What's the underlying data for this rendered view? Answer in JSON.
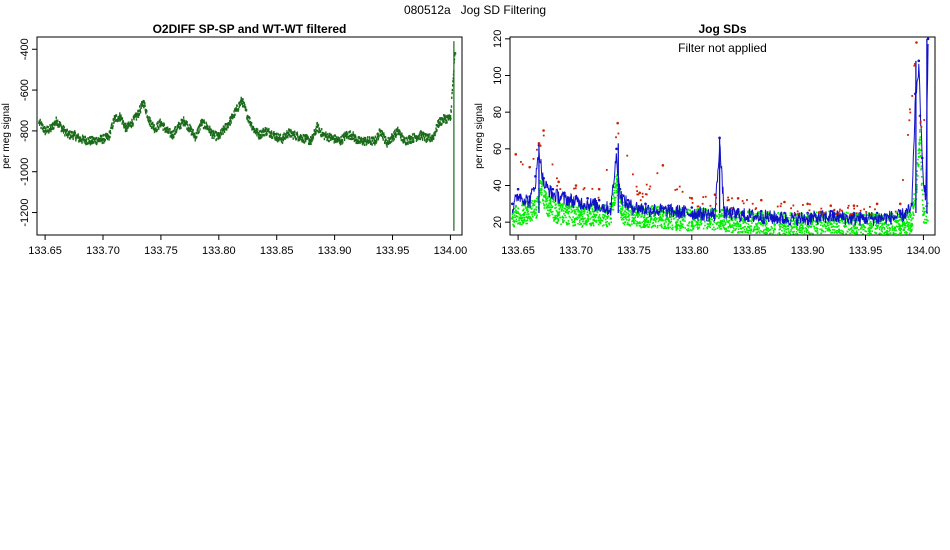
{
  "figure": {
    "title": "080512a   Jog SD Filtering"
  },
  "colors": {
    "dark_green": "#1a6b1a",
    "bright_green": "#00ee00",
    "blue": "#1010c8",
    "red": "#cc2200",
    "frame": "#000000"
  },
  "chart_data": [
    {
      "type": "scatter",
      "title": "O2DIFF SP-SP and WT-WT filtered",
      "xlabel": "",
      "ylabel": "per meg signal",
      "xlim": [
        133.643,
        134.01
      ],
      "ylim": [
        -1310,
        -340
      ],
      "x_ticks": [
        133.65,
        133.7,
        133.75,
        133.8,
        133.85,
        133.9,
        133.95,
        134.0
      ],
      "x_tick_labels": [
        "133.65",
        "133.70",
        "133.75",
        "133.80",
        "133.85",
        "133.90",
        "133.95",
        "134.00"
      ],
      "y_ticks": [
        -400,
        -600,
        -800,
        -1000,
        -1200
      ],
      "y_tick_labels": [
        "-400",
        "-600",
        "-800",
        "-1000",
        "-1200"
      ],
      "series": [
        {
          "color": "#1a6b1a",
          "x": [
            133.645,
            133.65,
            133.655,
            133.66,
            133.665,
            133.67,
            133.675,
            133.68,
            133.69,
            133.7,
            133.705,
            133.71,
            133.715,
            133.72,
            133.725,
            133.73,
            133.735,
            133.74,
            133.745,
            133.75,
            133.755,
            133.76,
            133.765,
            133.77,
            133.775,
            133.78,
            133.785,
            133.79,
            133.795,
            133.8,
            133.805,
            133.81,
            133.815,
            133.82,
            133.825,
            133.83,
            133.835,
            133.84,
            133.845,
            133.85,
            133.855,
            133.86,
            133.865,
            133.87,
            133.875,
            133.88,
            133.885,
            133.89,
            133.895,
            133.9,
            133.905,
            133.91,
            133.915,
            133.92,
            133.925,
            133.93,
            133.935,
            133.94,
            133.945,
            133.95,
            133.955,
            133.96,
            133.965,
            133.97,
            133.975,
            133.98,
            133.985,
            133.99,
            133.995,
            134.0,
            134.004
          ],
          "y": [
            -760,
            -800,
            -790,
            -750,
            -790,
            -820,
            -820,
            -840,
            -850,
            -840,
            -830,
            -740,
            -730,
            -790,
            -760,
            -720,
            -660,
            -750,
            -790,
            -760,
            -800,
            -820,
            -780,
            -750,
            -790,
            -830,
            -760,
            -780,
            -820,
            -830,
            -790,
            -750,
            -700,
            -650,
            -730,
            -790,
            -820,
            -800,
            -810,
            -830,
            -840,
            -810,
            -820,
            -830,
            -840,
            -850,
            -780,
            -820,
            -830,
            -840,
            -850,
            -820,
            -820,
            -850,
            -850,
            -850,
            -850,
            -800,
            -860,
            -830,
            -800,
            -850,
            -840,
            -830,
            -820,
            -840,
            -830,
            -760,
            -740,
            -740,
            -420
          ]
        }
      ]
    },
    {
      "type": "scatter",
      "title": "Jog SDs",
      "annotation": "Filter not applied",
      "xlabel": "",
      "ylabel": "per meg signal",
      "xlim": [
        133.643,
        134.01
      ],
      "ylim": [
        13,
        121
      ],
      "x_ticks": [
        133.65,
        133.7,
        133.75,
        133.8,
        133.85,
        133.9,
        133.95,
        134.0
      ],
      "x_tick_labels": [
        "133.65",
        "133.70",
        "133.75",
        "133.80",
        "133.85",
        "133.90",
        "133.95",
        "134.00"
      ],
      "y_ticks": [
        20,
        40,
        60,
        80,
        100,
        120
      ],
      "y_tick_labels": [
        "20",
        "40",
        "60",
        "80",
        "100",
        "120"
      ],
      "series": [
        {
          "color": "#00ee00",
          "x": [
            133.645,
            133.655,
            133.665,
            133.67,
            133.675,
            133.685,
            133.7,
            133.715,
            133.73,
            133.735,
            133.74,
            133.75,
            133.765,
            133.78,
            133.8,
            133.815,
            133.825,
            133.84,
            133.86,
            133.88,
            133.9,
            133.92,
            133.94,
            133.96,
            133.98,
            133.99,
            133.994,
            133.997,
            134.0
          ],
          "y": [
            22,
            24,
            25,
            38,
            28,
            24,
            22,
            23,
            22,
            40,
            24,
            22,
            22,
            21,
            20,
            21,
            20,
            19,
            19,
            18,
            18,
            19,
            18,
            18,
            18,
            19,
            38,
            65,
            24
          ]
        },
        {
          "color": "#1010c8",
          "x": [
            133.645,
            133.65,
            133.66,
            133.665,
            133.668,
            133.672,
            133.68,
            133.69,
            133.7,
            133.71,
            133.72,
            133.73,
            133.735,
            133.738,
            133.745,
            133.76,
            133.78,
            133.8,
            133.82,
            133.824,
            133.828,
            133.84,
            133.86,
            133.88,
            133.9,
            133.92,
            133.94,
            133.96,
            133.98,
            133.99,
            133.993,
            133.996,
            133.999,
            134.002,
            134.004
          ],
          "y": [
            30,
            38,
            34,
            45,
            62,
            44,
            38,
            36,
            34,
            33,
            32,
            30,
            60,
            38,
            32,
            30,
            29,
            28,
            27,
            66,
            28,
            27,
            26,
            25,
            25,
            26,
            25,
            25,
            26,
            30,
            90,
            108,
            55,
            35,
            120
          ]
        },
        {
          "color": "#cc2200",
          "x": [
            133.648,
            133.66,
            133.668,
            133.672,
            133.685,
            133.7,
            133.72,
            133.736,
            133.755,
            133.775,
            133.8,
            133.82,
            133.84,
            133.86,
            133.88,
            133.9,
            133.92,
            133.94,
            133.96,
            133.98,
            133.994,
            133.997
          ],
          "y": [
            57,
            50,
            63,
            70,
            42,
            40,
            38,
            74,
            36,
            51,
            33,
            35,
            33,
            32,
            31,
            30,
            29,
            29,
            30,
            30,
            118,
            78
          ]
        }
      ]
    }
  ]
}
